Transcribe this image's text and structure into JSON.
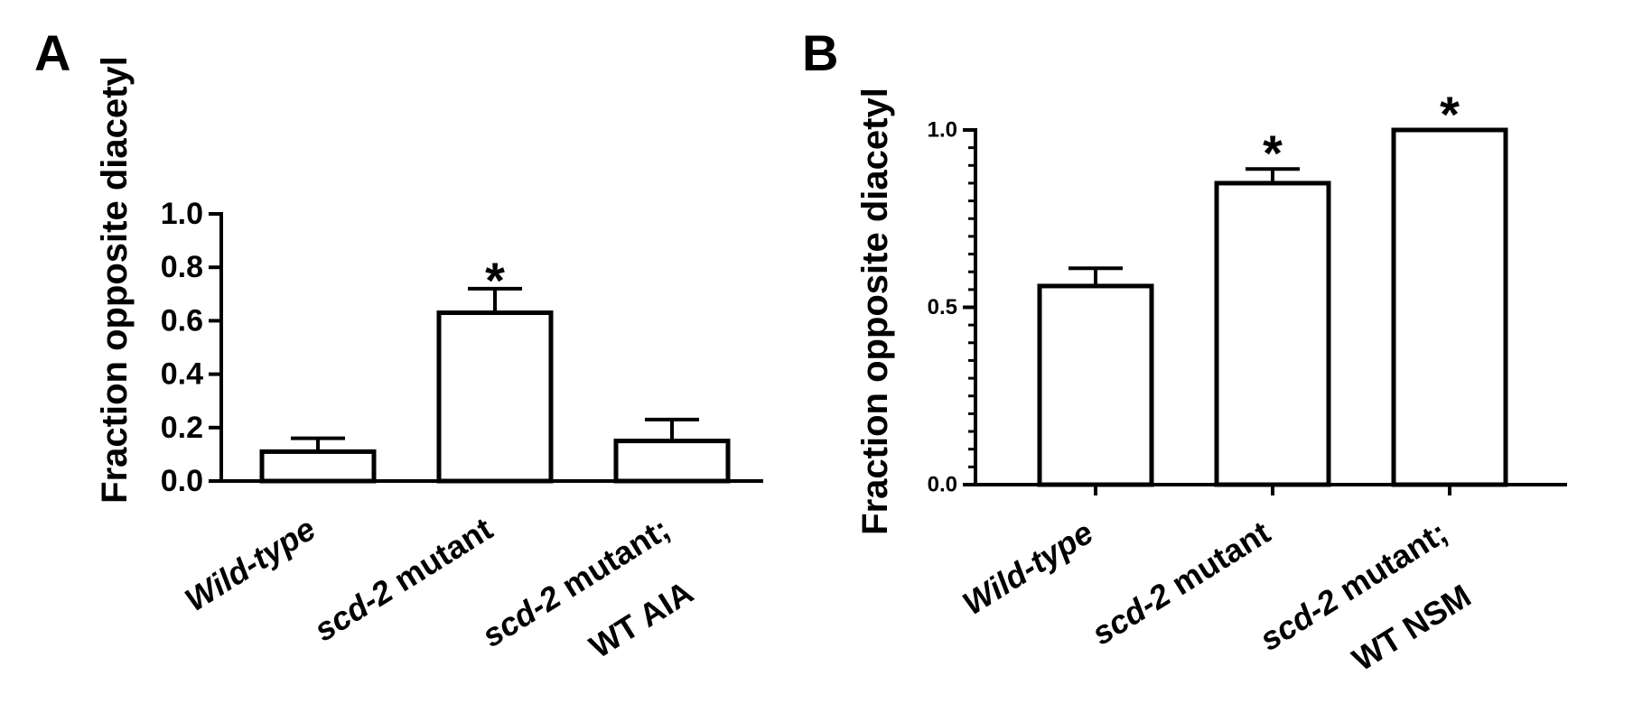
{
  "chart_data": [
    {
      "panel": "A",
      "type": "bar",
      "title": "",
      "ylabel": "Fraction opposite diacetyl",
      "xlabel": "",
      "ylim": [
        0,
        1.0
      ],
      "yticks": [
        "0.0",
        "0.2",
        "0.4",
        "0.6",
        "0.8",
        "1.0"
      ],
      "categories": [
        {
          "parts": [
            {
              "text": "Wild-type",
              "italic": true
            }
          ]
        },
        {
          "parts": [
            {
              "text": "scd-2",
              "italic": true
            },
            {
              "text": " mutant",
              "italic": false
            }
          ]
        },
        {
          "parts": [
            {
              "text": "scd-2",
              "italic": true
            },
            {
              "text": " mutant;",
              "italic": false
            }
          ],
          "line2": "WT AIA"
        }
      ],
      "values": [
        0.11,
        0.63,
        0.15
      ],
      "errors": [
        0.05,
        0.09,
        0.08
      ],
      "significance": [
        "",
        "*",
        ""
      ]
    },
    {
      "panel": "B",
      "type": "bar",
      "title": "",
      "ylabel": "Fraction opposite diacetyl",
      "xlabel": "",
      "ylim": [
        0,
        1.0
      ],
      "yticks": [
        "0.0",
        "0.5",
        "1.0"
      ],
      "categories": [
        {
          "parts": [
            {
              "text": "Wild-type",
              "italic": true
            }
          ]
        },
        {
          "parts": [
            {
              "text": "scd-2",
              "italic": true
            },
            {
              "text": " mutant",
              "italic": false
            }
          ]
        },
        {
          "parts": [
            {
              "text": "scd-2",
              "italic": true
            },
            {
              "text": " mutant;",
              "italic": false
            }
          ],
          "line2": "WT NSM"
        }
      ],
      "values": [
        0.56,
        0.85,
        1.0
      ],
      "errors": [
        0.05,
        0.04,
        0.0
      ],
      "significance": [
        "",
        "*",
        "*"
      ]
    }
  ]
}
